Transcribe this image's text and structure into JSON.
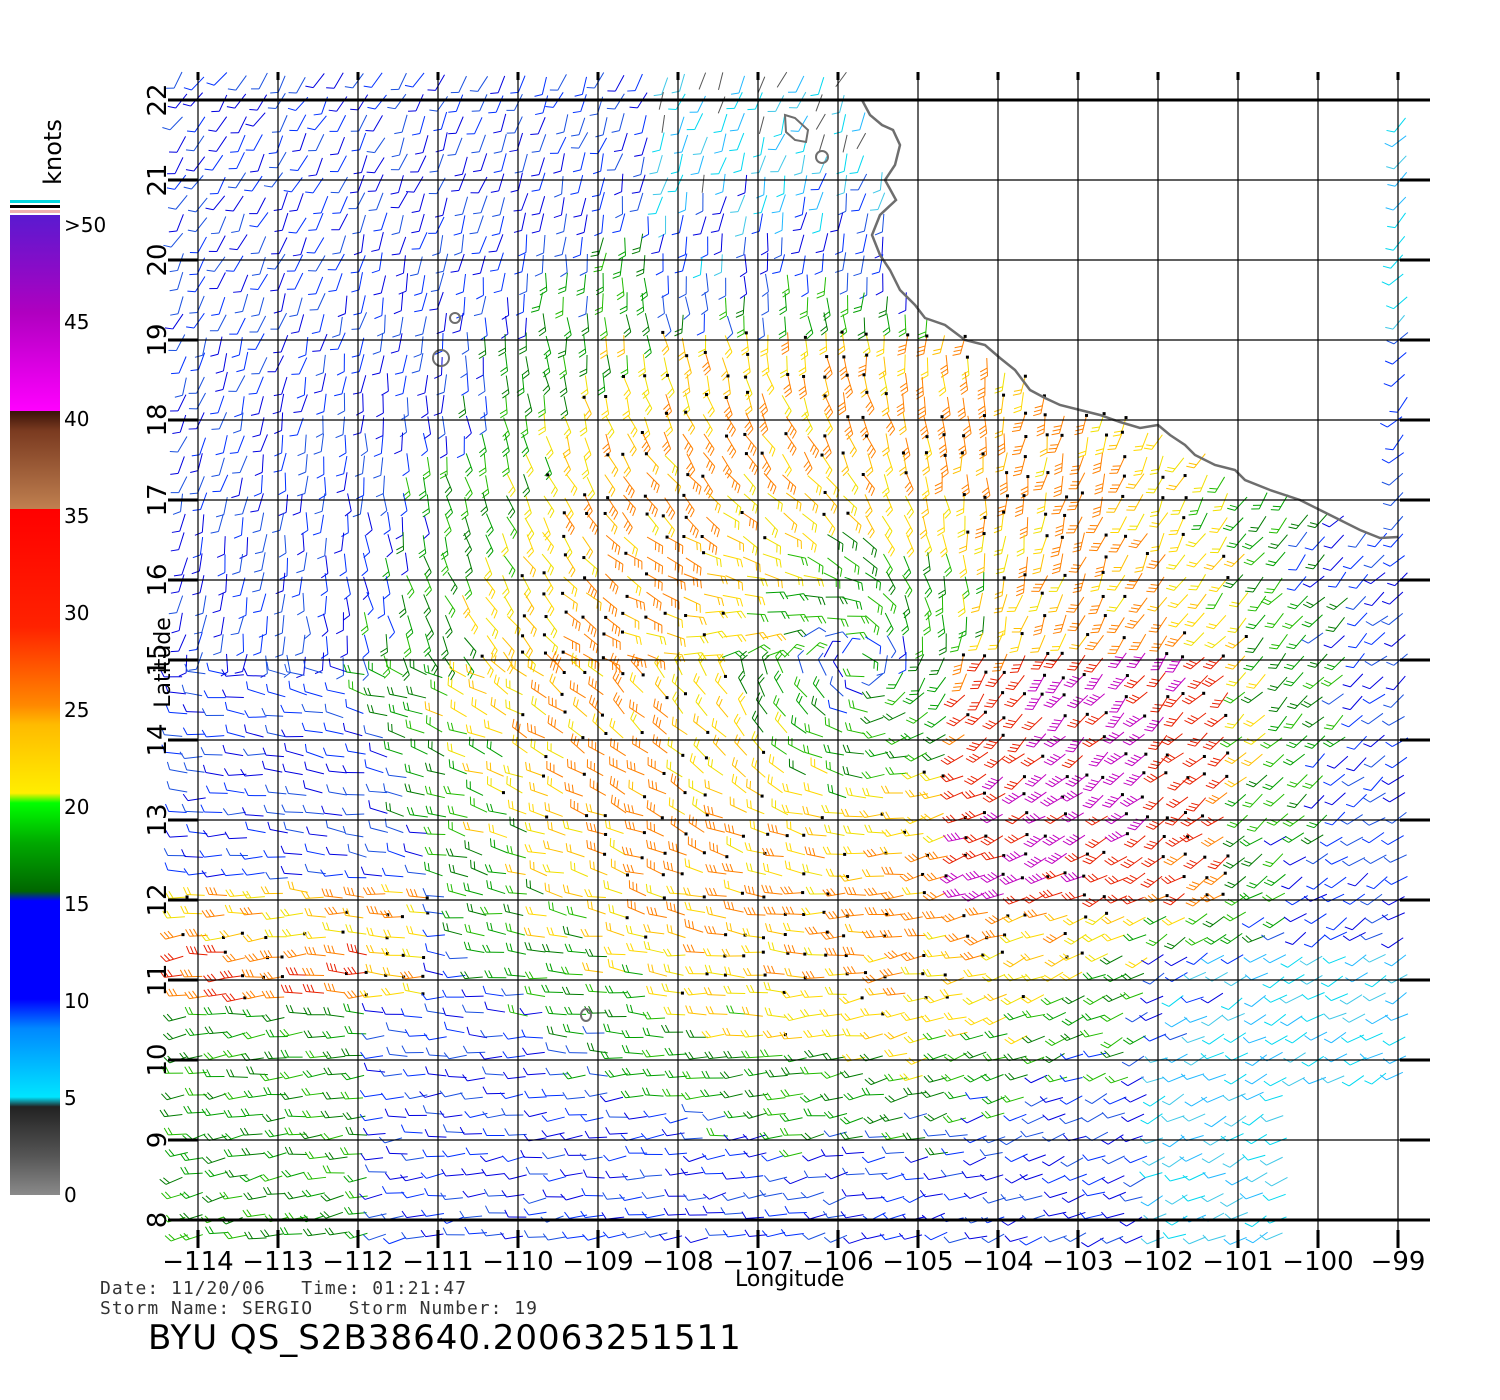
{
  "map": {
    "x_axis_label": "Longitude",
    "y_axis_label": "Latitude",
    "lon_ticks": [
      "-114",
      "-113",
      "-112",
      "-111",
      "-110",
      "-109",
      "-108",
      "-107",
      "-106",
      "-105",
      "-104",
      "-103",
      "-102",
      "-101",
      "-100",
      "-99"
    ],
    "lat_ticks": [
      "8",
      "9",
      "10",
      "11",
      "12",
      "13",
      "14",
      "15",
      "16",
      "17",
      "18",
      "19",
      "20",
      "21",
      "22"
    ],
    "lon_range": [
      -114,
      -99
    ],
    "lat_range": [
      8,
      22
    ],
    "grid": true,
    "storm_center_approx": {
      "lon": -105.7,
      "lat": 15.0
    }
  },
  "colorbar": {
    "units": "knots",
    "labels": [
      ">50",
      "45",
      "40",
      "35",
      "30",
      "25",
      "20",
      "15",
      "10",
      "5",
      "0"
    ],
    "colors": {
      "0-5": "#707070",
      "5-10": "#00e5ff",
      "10-15": "#0000ff",
      "15-20": "#009900",
      "20-25": "#ffd400",
      "25-30": "#ff7a00",
      "30-35": "#ff1a1a",
      "35-40": "#8b4b2b",
      ">40": "#ff00ff",
      ">50": "#6a1fd0"
    }
  },
  "info": {
    "date_line": "Date: 11/20/06   Time: 01:21:47",
    "storm_line": "Storm Name: SERGIO   Storm Number: 19"
  },
  "footer": {
    "title": "BYU QS_S2B38640.20063251511"
  }
}
